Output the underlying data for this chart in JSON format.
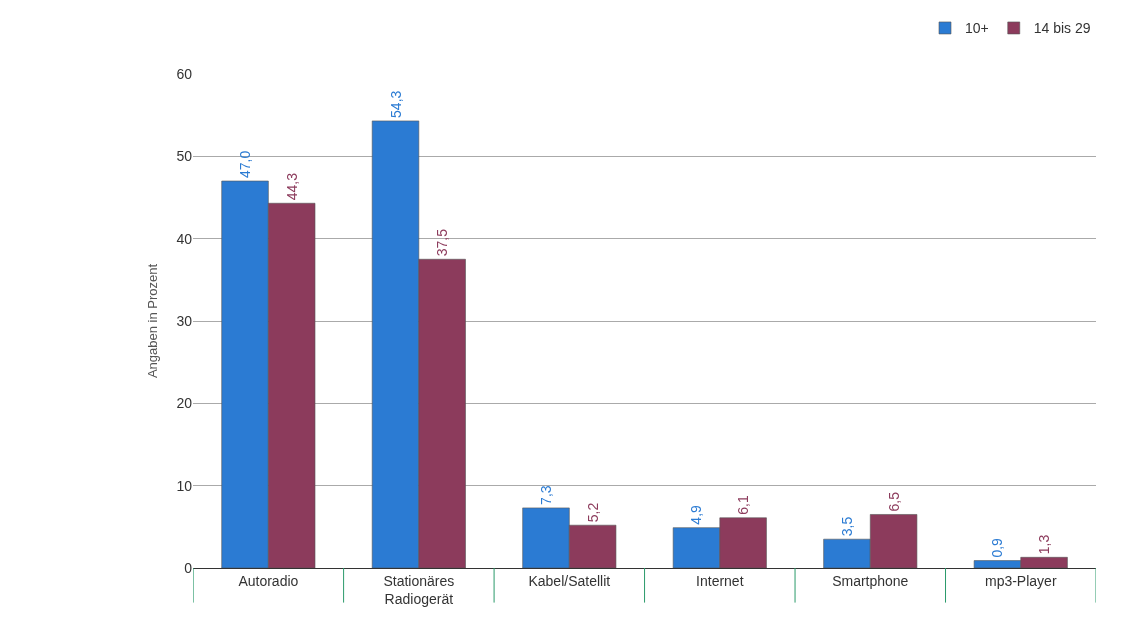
{
  "chart_data": {
    "type": "bar",
    "ylabel": "Angaben in Prozent",
    "categories": [
      "Autoradio",
      "Stationäres\nRadiogerät",
      "Kabel/Satellit",
      "Internet",
      "Smartphone",
      "mp3-Player"
    ],
    "series": [
      {
        "name": "10+",
        "color": "#2b7bd3",
        "values": [
          47.0,
          54.3,
          7.3,
          4.9,
          3.5,
          0.9
        ],
        "value_labels": [
          "47,0",
          "54,3",
          "7,3",
          "4,9",
          "3,5",
          "0,9"
        ]
      },
      {
        "name": "14 bis 29",
        "color": "#8c3b5c",
        "values": [
          44.3,
          37.5,
          5.2,
          6.1,
          6.5,
          1.3
        ],
        "value_labels": [
          "44,3",
          "37,5",
          "5,2",
          "6,1",
          "6,5",
          "1,3"
        ]
      }
    ],
    "ylim": [
      0,
      60
    ],
    "yticks": [
      0,
      10,
      20,
      30,
      40,
      50,
      60
    ],
    "grid": "y",
    "legend": "top right"
  }
}
